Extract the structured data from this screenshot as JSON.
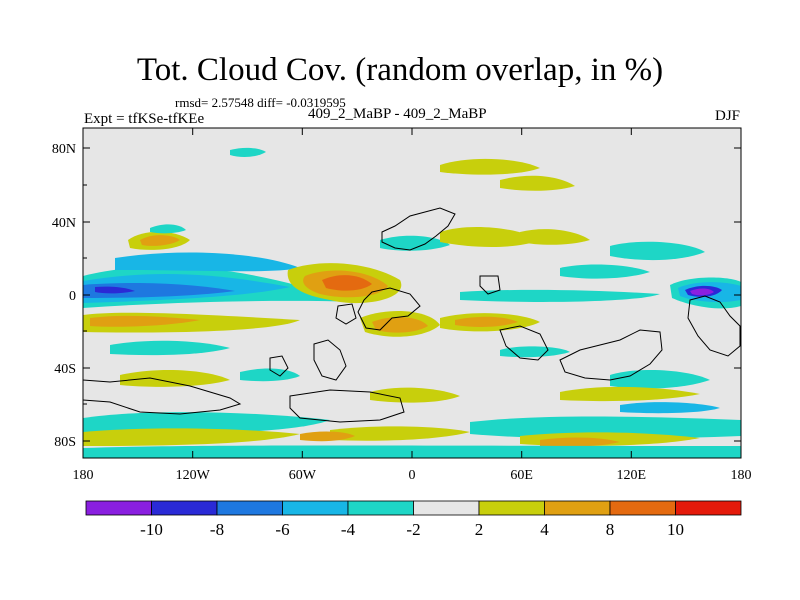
{
  "title": "Tot. Cloud Cov. (random overlap, in %)",
  "stats_line": "rmsd= 2.57548 diff= -0.0319595",
  "experiment_label": "Expt = tfKSe-tfKEe",
  "cases_label": "409_2_MaBP - 409_2_MaBP",
  "season": "DJF",
  "y_tick_labels": [
    "80N",
    "40N",
    "0",
    "40S",
    "80S"
  ],
  "x_tick_labels": [
    "180",
    "120W",
    "60W",
    "0",
    "60E",
    "120E",
    "180"
  ],
  "colorbar": {
    "labels": [
      "-10",
      "-8",
      "-6",
      "-4",
      "-2",
      "2",
      "4",
      "8",
      "10"
    ],
    "colors": [
      "#8a1fe0",
      "#2a2ad6",
      "#1e78e0",
      "#18b6e6",
      "#1ed6c6",
      "#e6e6e6",
      "#c8cf0c",
      "#e0a012",
      "#e46a10",
      "#e41a0a"
    ]
  }
}
